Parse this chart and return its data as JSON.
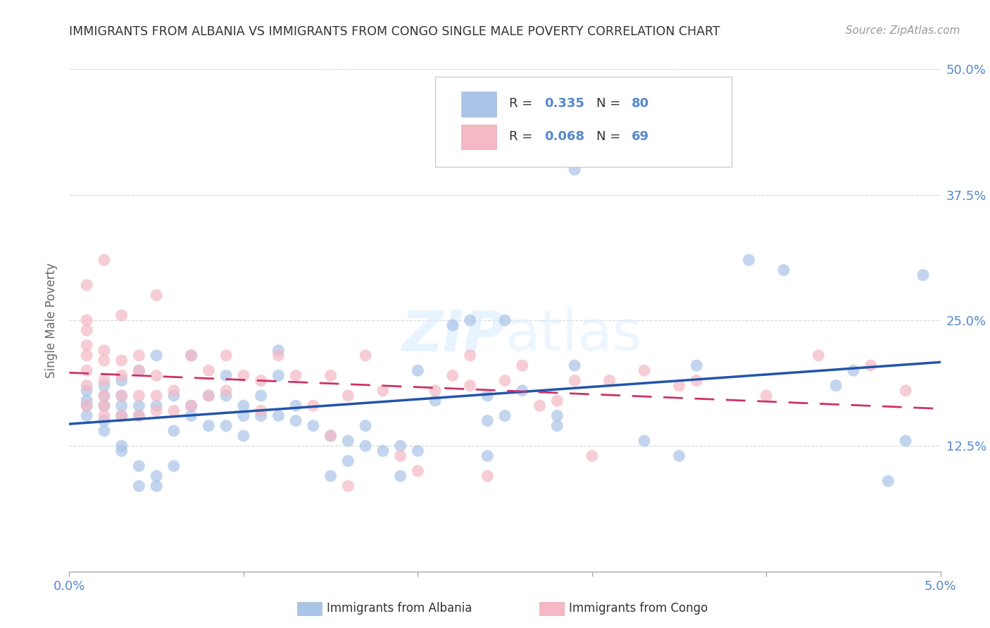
{
  "title": "IMMIGRANTS FROM ALBANIA VS IMMIGRANTS FROM CONGO SINGLE MALE POVERTY CORRELATION CHART",
  "source": "Source: ZipAtlas.com",
  "ylabel": "Single Male Poverty",
  "xlim": [
    0.0,
    0.05
  ],
  "ylim": [
    0.0,
    0.5
  ],
  "xtick_positions": [
    0.0,
    0.01,
    0.02,
    0.03,
    0.04,
    0.05
  ],
  "xtick_labels": [
    "0.0%",
    "",
    "",
    "",
    "",
    "5.0%"
  ],
  "ytick_labels": [
    "12.5%",
    "25.0%",
    "37.5%",
    "50.0%"
  ],
  "yticks": [
    0.125,
    0.25,
    0.375,
    0.5
  ],
  "albania_color": "#aac4e8",
  "congo_color": "#f5b8c4",
  "albania_line_color": "#2255aa",
  "congo_line_color": "#cc3366",
  "albania_R": "0.335",
  "albania_N": "80",
  "congo_R": "0.068",
  "congo_N": "69",
  "watermark": "ZIPatlas",
  "background_color": "#ffffff",
  "grid_color": "#cccccc",
  "axis_label_color": "#5588cc",
  "title_color": "#333333",
  "albania_scatter_x": [
    0.001,
    0.001,
    0.001,
    0.001,
    0.002,
    0.002,
    0.002,
    0.002,
    0.002,
    0.003,
    0.003,
    0.003,
    0.003,
    0.003,
    0.003,
    0.004,
    0.004,
    0.004,
    0.004,
    0.004,
    0.005,
    0.005,
    0.005,
    0.005,
    0.006,
    0.006,
    0.006,
    0.007,
    0.007,
    0.007,
    0.008,
    0.008,
    0.009,
    0.009,
    0.009,
    0.01,
    0.01,
    0.01,
    0.011,
    0.011,
    0.012,
    0.012,
    0.012,
    0.013,
    0.013,
    0.014,
    0.015,
    0.015,
    0.016,
    0.016,
    0.017,
    0.017,
    0.018,
    0.019,
    0.019,
    0.02,
    0.02,
    0.021,
    0.022,
    0.023,
    0.024,
    0.024,
    0.024,
    0.025,
    0.025,
    0.026,
    0.028,
    0.028,
    0.029,
    0.029,
    0.033,
    0.035,
    0.036,
    0.039,
    0.041,
    0.044,
    0.045,
    0.047,
    0.048,
    0.049
  ],
  "albania_scatter_y": [
    0.165,
    0.155,
    0.17,
    0.18,
    0.14,
    0.15,
    0.165,
    0.175,
    0.185,
    0.12,
    0.125,
    0.155,
    0.165,
    0.175,
    0.19,
    0.085,
    0.105,
    0.155,
    0.165,
    0.2,
    0.085,
    0.095,
    0.165,
    0.215,
    0.105,
    0.14,
    0.175,
    0.155,
    0.165,
    0.215,
    0.145,
    0.175,
    0.145,
    0.175,
    0.195,
    0.135,
    0.155,
    0.165,
    0.155,
    0.175,
    0.155,
    0.195,
    0.22,
    0.15,
    0.165,
    0.145,
    0.095,
    0.135,
    0.11,
    0.13,
    0.125,
    0.145,
    0.12,
    0.095,
    0.125,
    0.12,
    0.2,
    0.17,
    0.245,
    0.25,
    0.115,
    0.15,
    0.175,
    0.25,
    0.155,
    0.18,
    0.145,
    0.155,
    0.205,
    0.4,
    0.13,
    0.115,
    0.205,
    0.31,
    0.3,
    0.185,
    0.2,
    0.09,
    0.13,
    0.295
  ],
  "congo_scatter_x": [
    0.001,
    0.001,
    0.001,
    0.001,
    0.001,
    0.001,
    0.001,
    0.001,
    0.002,
    0.002,
    0.002,
    0.002,
    0.002,
    0.002,
    0.002,
    0.003,
    0.003,
    0.003,
    0.003,
    0.003,
    0.004,
    0.004,
    0.004,
    0.004,
    0.005,
    0.005,
    0.005,
    0.005,
    0.006,
    0.006,
    0.007,
    0.007,
    0.008,
    0.008,
    0.009,
    0.009,
    0.01,
    0.011,
    0.011,
    0.012,
    0.013,
    0.014,
    0.015,
    0.015,
    0.016,
    0.016,
    0.017,
    0.018,
    0.019,
    0.02,
    0.021,
    0.022,
    0.023,
    0.023,
    0.024,
    0.025,
    0.026,
    0.027,
    0.028,
    0.029,
    0.03,
    0.031,
    0.033,
    0.035,
    0.036,
    0.04,
    0.043,
    0.046,
    0.048
  ],
  "congo_scatter_y": [
    0.165,
    0.185,
    0.2,
    0.215,
    0.225,
    0.24,
    0.25,
    0.285,
    0.155,
    0.165,
    0.175,
    0.19,
    0.21,
    0.22,
    0.31,
    0.155,
    0.175,
    0.195,
    0.21,
    0.255,
    0.155,
    0.175,
    0.2,
    0.215,
    0.16,
    0.175,
    0.195,
    0.275,
    0.16,
    0.18,
    0.165,
    0.215,
    0.175,
    0.2,
    0.18,
    0.215,
    0.195,
    0.16,
    0.19,
    0.215,
    0.195,
    0.165,
    0.135,
    0.195,
    0.085,
    0.175,
    0.215,
    0.18,
    0.115,
    0.1,
    0.18,
    0.195,
    0.215,
    0.185,
    0.095,
    0.19,
    0.205,
    0.165,
    0.17,
    0.19,
    0.115,
    0.19,
    0.2,
    0.185,
    0.19,
    0.175,
    0.215,
    0.205,
    0.18
  ]
}
